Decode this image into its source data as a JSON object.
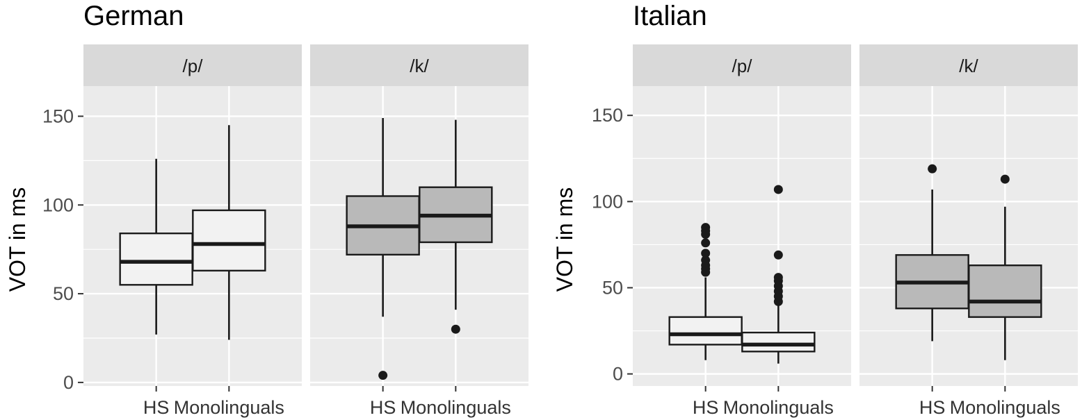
{
  "chart_data": [
    {
      "type": "boxplot",
      "title": "German",
      "xlabel": "",
      "ylabel": "VOT in ms",
      "ylim": [
        -2,
        167
      ],
      "yticks": [
        0,
        50,
        100,
        150
      ],
      "categories": [
        "HS",
        "Monolinguals"
      ],
      "panels": [
        {
          "strip": "/p/",
          "fill": "#f2f2f2",
          "boxes": [
            {
              "category": "HS",
              "whisker_low": 27,
              "q1": 55,
              "median": 68,
              "q3": 84,
              "whisker_high": 126,
              "outliers": []
            },
            {
              "category": "Monolinguals",
              "whisker_low": 24,
              "q1": 63,
              "median": 78,
              "q3": 97,
              "whisker_high": 145,
              "outliers": []
            }
          ]
        },
        {
          "strip": "/k/",
          "fill": "#b9b9b9",
          "boxes": [
            {
              "category": "HS",
              "whisker_low": 37,
              "q1": 72,
              "median": 88,
              "q3": 105,
              "whisker_high": 149,
              "outliers": [
                4
              ]
            },
            {
              "category": "Monolinguals",
              "whisker_low": 41,
              "q1": 79,
              "median": 94,
              "q3": 110,
              "whisker_high": 148,
              "outliers": [
                30
              ]
            }
          ]
        }
      ]
    },
    {
      "type": "boxplot",
      "title": "Italian",
      "xlabel": "",
      "ylabel": "VOT in ms",
      "ylim": [
        -7,
        167
      ],
      "yticks": [
        0,
        50,
        100,
        150
      ],
      "categories": [
        "HS",
        "Monolinguals"
      ],
      "panels": [
        {
          "strip": "/p/",
          "fill": "#f2f2f2",
          "boxes": [
            {
              "category": "HS",
              "whisker_low": 8,
              "q1": 17,
              "median": 23,
              "q3": 33,
              "whisker_high": 56,
              "outliers": [
                59,
                61,
                63,
                66,
                70,
                76,
                81,
                83,
                85
              ]
            },
            {
              "category": "Monolinguals",
              "whisker_low": 6,
              "q1": 13,
              "median": 17,
              "q3": 24,
              "whisker_high": 40,
              "outliers": [
                42,
                45,
                48,
                51,
                54,
                56,
                69,
                107
              ]
            }
          ]
        },
        {
          "strip": "/k/",
          "fill": "#b9b9b9",
          "boxes": [
            {
              "category": "HS",
              "whisker_low": 19,
              "q1": 38,
              "median": 53,
              "q3": 69,
              "whisker_high": 107,
              "outliers": [
                119
              ]
            },
            {
              "category": "Monolinguals",
              "whisker_low": 8,
              "q1": 33,
              "median": 42,
              "q3": 63,
              "whisker_high": 97,
              "outliers": [
                113
              ]
            }
          ]
        }
      ]
    }
  ]
}
